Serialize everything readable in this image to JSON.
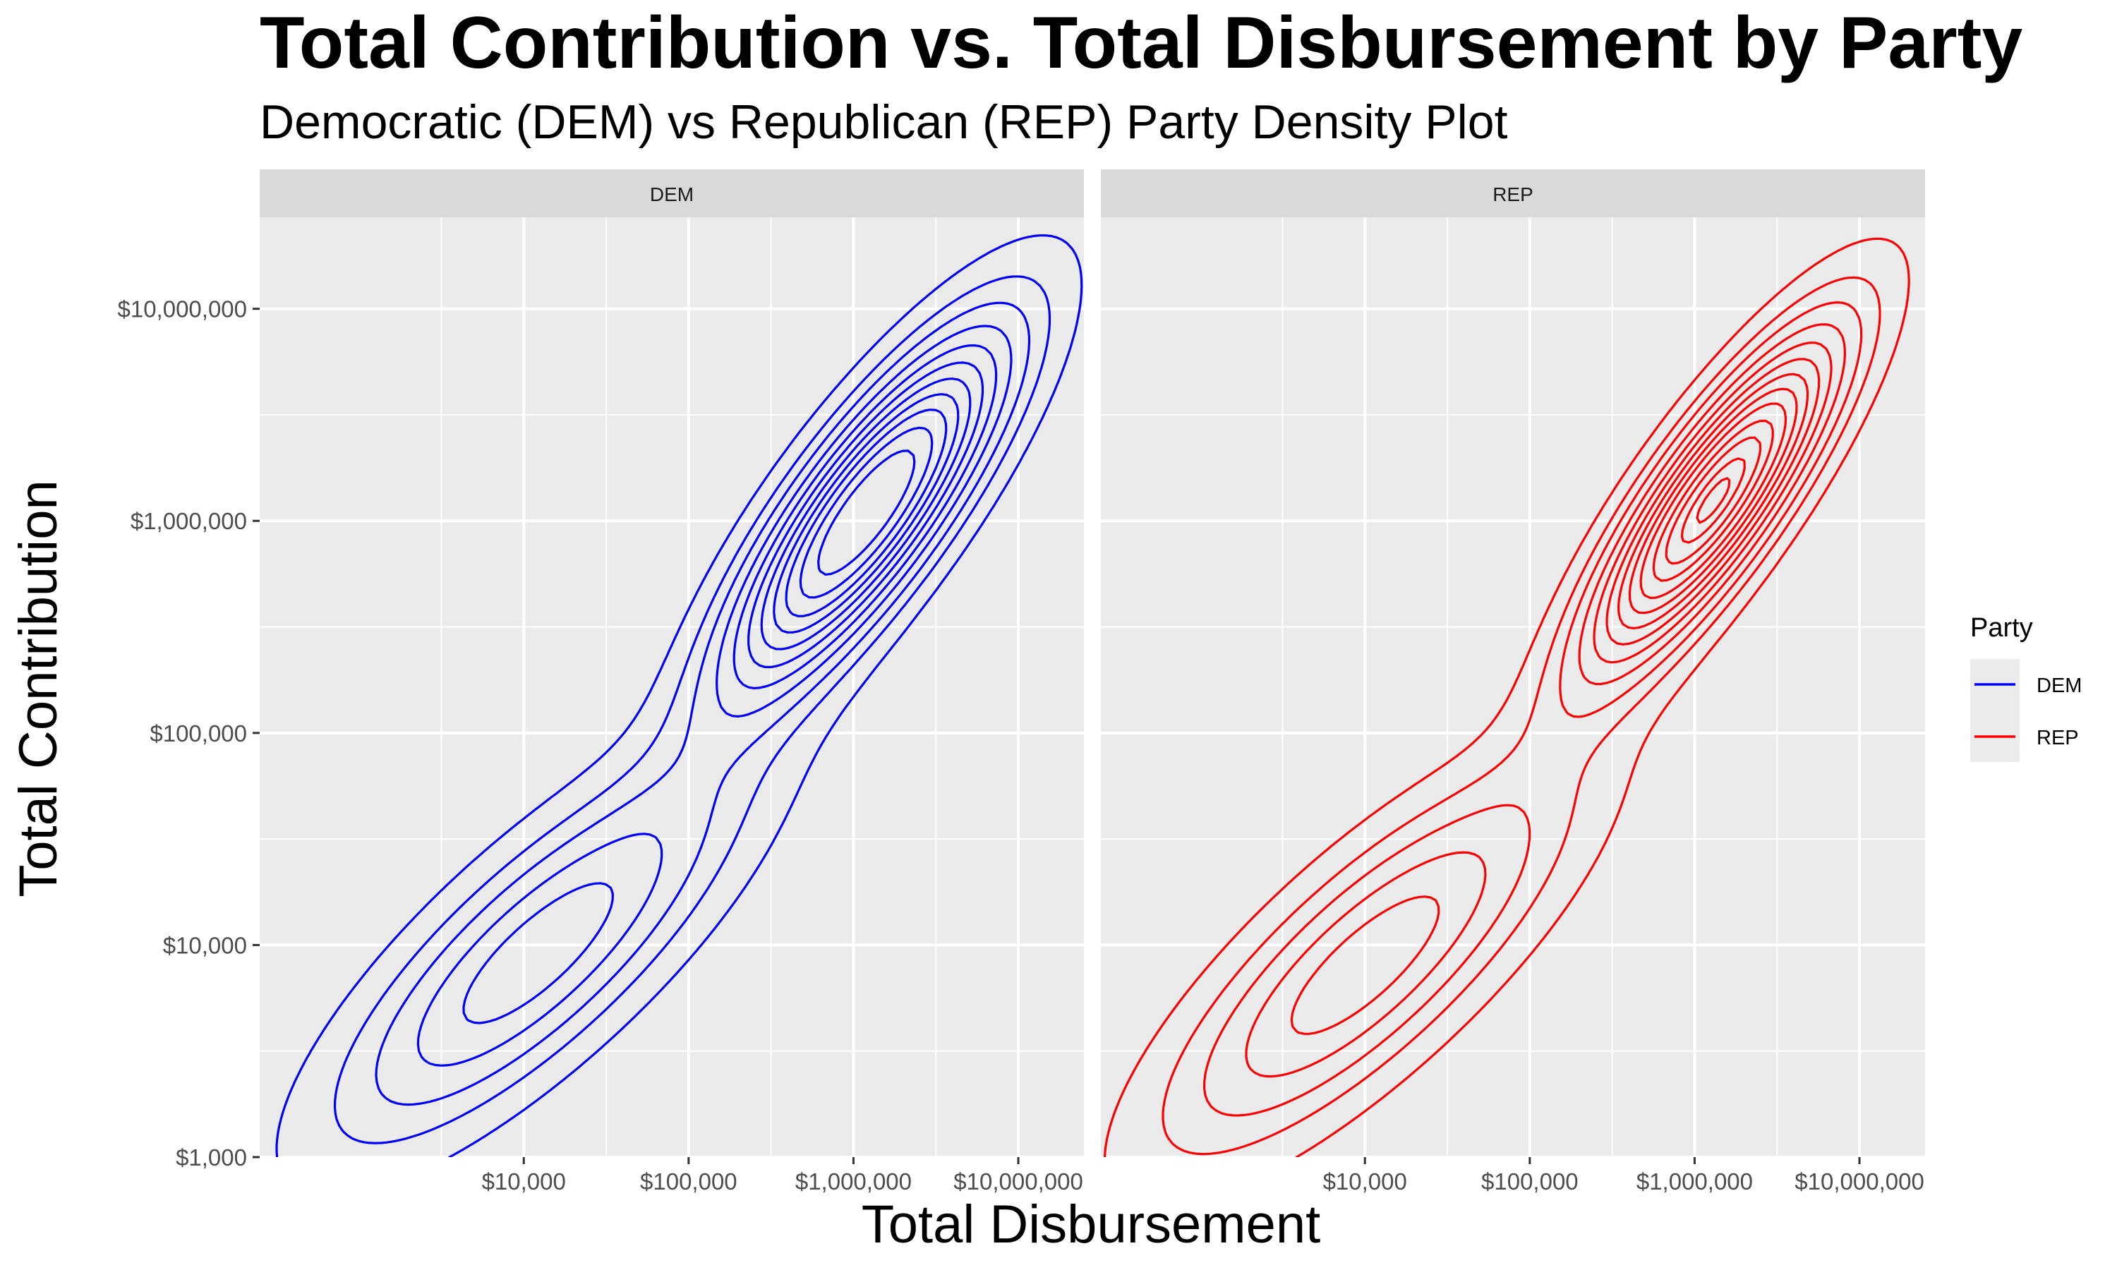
{
  "chart_data": {
    "type": "contour",
    "title": "Total Contribution vs. Total Disbursement by Party",
    "subtitle": "Democratic (DEM) vs Republican (REP) Party Density Plot",
    "xlabel": "Total Disbursement",
    "ylabel": "Total Contribution",
    "x_scale": "log10",
    "y_scale": "log10",
    "xlim": [
      250,
      25000000
    ],
    "ylim": [
      1000,
      27000000
    ],
    "x_ticks": [
      10000,
      100000,
      1000000,
      10000000
    ],
    "x_tick_labels": [
      "$10,000",
      "$100,000",
      "$1,000,000",
      "$10,000,000"
    ],
    "y_ticks": [
      1000,
      10000,
      100000,
      1000000,
      10000000
    ],
    "y_tick_labels": [
      "$1,000",
      "$10,000",
      "$100,000",
      "$1,000,000",
      "$10,000,000"
    ],
    "grid": true,
    "legend": {
      "title": "Party",
      "position": "right",
      "entries": [
        {
          "label": "DEM",
          "color": "#0000ff"
        },
        {
          "label": "REP",
          "color": "#ff0000"
        }
      ]
    },
    "panels": [
      {
        "facet": "DEM",
        "color": "#0000ff",
        "peaks": [
          {
            "x": 1200000,
            "y": 1100000,
            "sx": 0.55,
            "sy": 0.55,
            "rho": 0.82,
            "w": 1.0
          },
          {
            "x": 12000,
            "y": 9000,
            "sx": 0.8,
            "sy": 0.58,
            "rho": 0.8,
            "w": 0.42
          }
        ],
        "levels": [
          0.06,
          0.13,
          0.2,
          0.28,
          0.36,
          0.44,
          0.52,
          0.6,
          0.68,
          0.77,
          0.87
        ]
      },
      {
        "facet": "REP",
        "color": "#ff0000",
        "peaks": [
          {
            "x": 1300000,
            "y": 1250000,
            "sx": 0.5,
            "sy": 0.52,
            "rho": 0.84,
            "w": 1.0
          },
          {
            "x": 10000,
            "y": 8000,
            "sx": 0.8,
            "sy": 0.58,
            "rho": 0.8,
            "w": 0.42
          }
        ],
        "levels": [
          0.06,
          0.13,
          0.2,
          0.28,
          0.36,
          0.44,
          0.52,
          0.6,
          0.68,
          0.77,
          0.85,
          0.93,
          0.98
        ]
      }
    ]
  }
}
